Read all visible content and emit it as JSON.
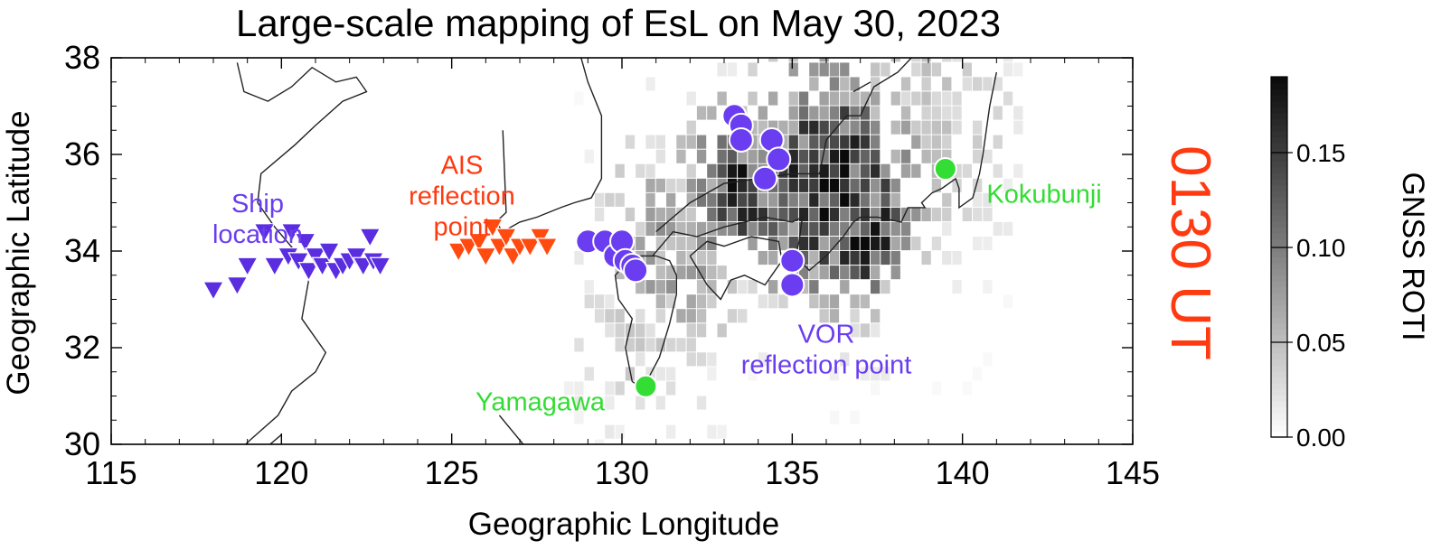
{
  "chart_data": {
    "type": "heatmap",
    "title": "Large-scale mapping of EsL on May 30, 2023",
    "xlabel": "Geographic Longitude",
    "ylabel": "Geographic Latitude",
    "xlim": [
      115,
      145
    ],
    "ylim": [
      30,
      38
    ],
    "xticks": [
      115,
      120,
      125,
      130,
      135,
      140,
      145
    ],
    "yticks": [
      30,
      32,
      34,
      36,
      38
    ],
    "time_label": "0130 UT",
    "colorbar": {
      "label": "GNSS ROTI",
      "range": [
        0,
        0.19
      ],
      "ticks": [
        {
          "value": 0.0,
          "label": "0.00"
        },
        {
          "value": 0.05,
          "label": "0.05"
        },
        {
          "value": 0.1,
          "label": "0.10"
        },
        {
          "value": 0.15,
          "label": "0.15"
        }
      ]
    },
    "annotations": [
      {
        "text": [
          "Ship",
          "location"
        ],
        "lon": 119.3,
        "lat": 34.8,
        "color": "#6a3df0"
      },
      {
        "text": [
          "AIS",
          "reflection",
          "point"
        ],
        "lon": 125.3,
        "lat": 35.6,
        "color": "#ff3a10"
      },
      {
        "text": [
          "VOR",
          "reflection point"
        ],
        "lon": 136.0,
        "lat": 32.1,
        "color": "#6a3df0"
      },
      {
        "text": [
          "Yamagawa"
        ],
        "lon": 127.6,
        "lat": 30.7,
        "color": "#33dd33"
      },
      {
        "text": [
          "Kokubunji"
        ],
        "lon": 142.4,
        "lat": 35.0,
        "color": "#33dd33"
      }
    ],
    "stations": [
      {
        "name": "Yamagawa",
        "lon": 130.7,
        "lat": 31.2,
        "color": "#33dd33"
      },
      {
        "name": "Kokubunji",
        "lon": 139.5,
        "lat": 35.7,
        "color": "#33dd33"
      }
    ],
    "ship_locations": {
      "color": "#5a2de0",
      "points": [
        [
          118.0,
          33.2
        ],
        [
          118.7,
          33.3
        ],
        [
          119.0,
          33.7
        ],
        [
          119.5,
          34.4
        ],
        [
          119.8,
          33.7
        ],
        [
          120.2,
          33.9
        ],
        [
          120.3,
          34.4
        ],
        [
          120.5,
          33.8
        ],
        [
          120.7,
          34.2
        ],
        [
          120.8,
          33.6
        ],
        [
          121.0,
          33.9
        ],
        [
          121.2,
          33.7
        ],
        [
          121.4,
          34.0
        ],
        [
          121.6,
          33.6
        ],
        [
          121.8,
          33.7
        ],
        [
          122.0,
          33.8
        ],
        [
          122.2,
          33.9
        ],
        [
          122.4,
          33.7
        ],
        [
          122.6,
          34.3
        ],
        [
          122.7,
          33.8
        ],
        [
          122.9,
          33.7
        ]
      ]
    },
    "ais_reflection_points": {
      "color": "#ff4a10",
      "points": [
        [
          125.2,
          34.0
        ],
        [
          125.5,
          34.1
        ],
        [
          125.8,
          34.2
        ],
        [
          126.0,
          33.9
        ],
        [
          126.2,
          34.5
        ],
        [
          126.4,
          34.1
        ],
        [
          126.6,
          34.3
        ],
        [
          126.8,
          33.9
        ],
        [
          127.0,
          34.1
        ],
        [
          127.3,
          34.1
        ],
        [
          127.6,
          34.3
        ],
        [
          127.8,
          34.1
        ]
      ]
    },
    "vor_reflection_points": {
      "color": "#6a3df0",
      "points": [
        [
          129.0,
          34.2
        ],
        [
          129.5,
          34.2
        ],
        [
          129.8,
          33.9
        ],
        [
          130.0,
          34.2
        ],
        [
          130.1,
          33.8
        ],
        [
          130.3,
          33.7
        ],
        [
          130.4,
          33.6
        ],
        [
          133.3,
          36.8
        ],
        [
          133.5,
          36.6
        ],
        [
          133.5,
          36.3
        ],
        [
          134.4,
          36.3
        ],
        [
          134.6,
          35.9
        ],
        [
          134.2,
          35.5
        ],
        [
          135.0,
          33.8
        ],
        [
          135.0,
          33.3
        ]
      ]
    },
    "roti_clusters": [
      {
        "lon": 136.0,
        "lat": 35.2,
        "value": 0.17,
        "sigma": 2.2,
        "weight": 1.0
      },
      {
        "lon": 137.0,
        "lat": 34.2,
        "value": 0.19,
        "sigma": 1.1,
        "weight": 1.0
      },
      {
        "lon": 133.5,
        "lat": 35.2,
        "value": 0.16,
        "sigma": 1.5,
        "weight": 0.9
      },
      {
        "lon": 131.5,
        "lat": 34.0,
        "value": 0.08,
        "sigma": 2.0,
        "weight": 0.6
      },
      {
        "lon": 138.5,
        "lat": 36.5,
        "value": 0.05,
        "sigma": 2.5,
        "weight": 0.5
      },
      {
        "lon": 130.5,
        "lat": 32.0,
        "value": 0.04,
        "sigma": 2.0,
        "weight": 0.4
      }
    ],
    "coastlines": [
      [
        [
          118.8,
          29.9
        ],
        [
          119.1,
          30.1
        ],
        [
          119.9,
          30.6
        ],
        [
          120.3,
          31.1
        ],
        [
          121.0,
          31.5
        ],
        [
          121.3,
          31.9
        ],
        [
          120.6,
          32.6
        ],
        [
          120.8,
          33.4
        ],
        [
          120.4,
          34.0
        ],
        [
          119.8,
          34.5
        ],
        [
          119.3,
          35.0
        ],
        [
          119.4,
          35.6
        ],
        [
          120.4,
          36.2
        ],
        [
          121.0,
          36.6
        ],
        [
          121.8,
          37.1
        ],
        [
          122.5,
          37.3
        ],
        [
          122.2,
          37.6
        ],
        [
          121.6,
          37.5
        ],
        [
          120.9,
          37.8
        ],
        [
          120.3,
          37.4
        ],
        [
          119.6,
          37.1
        ],
        [
          118.9,
          37.3
        ],
        [
          118.7,
          37.9
        ]
      ],
      [
        [
          119.5,
          29.9
        ],
        [
          120.0,
          30.2
        ]
      ],
      [
        [
          126.4,
          30.6
        ],
        [
          127.1,
          30.0
        ]
      ],
      [
        [
          126.5,
          36.5
        ],
        [
          126.6,
          34.8
        ],
        [
          126.3,
          34.6
        ],
        [
          126.5,
          34.4
        ],
        [
          127.0,
          34.6
        ],
        [
          127.5,
          34.7
        ],
        [
          128.2,
          34.9
        ],
        [
          128.6,
          35.0
        ],
        [
          129.1,
          35.1
        ],
        [
          129.4,
          35.5
        ],
        [
          129.4,
          36.1
        ],
        [
          129.4,
          36.8
        ],
        [
          129.0,
          37.5
        ],
        [
          128.8,
          38.0
        ]
      ],
      [
        [
          129.6,
          34.4
        ],
        [
          130.3,
          33.9
        ],
        [
          130.6,
          33.9
        ],
        [
          131.0,
          33.9
        ],
        [
          131.4,
          33.8
        ],
        [
          131.6,
          33.5
        ],
        [
          131.6,
          33.1
        ],
        [
          131.4,
          32.5
        ],
        [
          131.1,
          31.8
        ],
        [
          130.8,
          31.4
        ],
        [
          130.7,
          31.1
        ],
        [
          130.3,
          31.3
        ],
        [
          130.1,
          32.0
        ],
        [
          130.3,
          32.6
        ],
        [
          129.9,
          33.0
        ],
        [
          129.8,
          33.5
        ],
        [
          130.2,
          33.8
        ]
      ],
      [
        [
          130.9,
          33.9
        ],
        [
          131.5,
          34.4
        ],
        [
          132.2,
          34.3
        ],
        [
          133.0,
          34.5
        ],
        [
          134.2,
          34.7
        ],
        [
          135.0,
          34.6
        ],
        [
          135.3,
          34.7
        ],
        [
          135.2,
          34.2
        ],
        [
          135.1,
          33.9
        ],
        [
          135.5,
          33.6
        ],
        [
          136.0,
          33.9
        ],
        [
          136.5,
          34.3
        ],
        [
          136.8,
          34.6
        ],
        [
          137.0,
          34.7
        ],
        [
          137.5,
          34.7
        ],
        [
          138.2,
          34.6
        ],
        [
          138.4,
          34.9
        ],
        [
          138.9,
          34.9
        ],
        [
          138.8,
          35.0
        ],
        [
          139.1,
          35.2
        ],
        [
          139.4,
          35.3
        ],
        [
          139.8,
          35.5
        ],
        [
          139.9,
          35.3
        ],
        [
          139.9,
          34.9
        ],
        [
          140.3,
          35.1
        ],
        [
          140.5,
          35.6
        ],
        [
          140.6,
          36.0
        ],
        [
          140.7,
          36.5
        ],
        [
          140.8,
          37.0
        ],
        [
          141.0,
          37.7
        ]
      ],
      [
        [
          132.0,
          33.9
        ],
        [
          132.5,
          33.3
        ],
        [
          132.9,
          33.0
        ],
        [
          133.2,
          33.4
        ],
        [
          133.6,
          33.5
        ],
        [
          134.2,
          33.3
        ],
        [
          134.7,
          33.8
        ],
        [
          134.6,
          34.2
        ],
        [
          133.8,
          34.3
        ],
        [
          133.0,
          34.1
        ],
        [
          132.5,
          34.2
        ],
        [
          132.0,
          33.9
        ]
      ],
      [
        [
          131.0,
          34.4
        ],
        [
          132.0,
          35.0
        ],
        [
          133.0,
          35.4
        ],
        [
          134.0,
          35.5
        ],
        [
          135.0,
          35.6
        ],
        [
          135.8,
          35.6
        ],
        [
          136.0,
          36.3
        ],
        [
          136.6,
          36.8
        ],
        [
          137.0,
          36.8
        ],
        [
          137.4,
          37.4
        ],
        [
          138.1,
          37.7
        ],
        [
          138.5,
          38.0
        ]
      ],
      [
        [
          136.8,
          37.3
        ],
        [
          137.3,
          37.5
        ]
      ]
    ]
  }
}
